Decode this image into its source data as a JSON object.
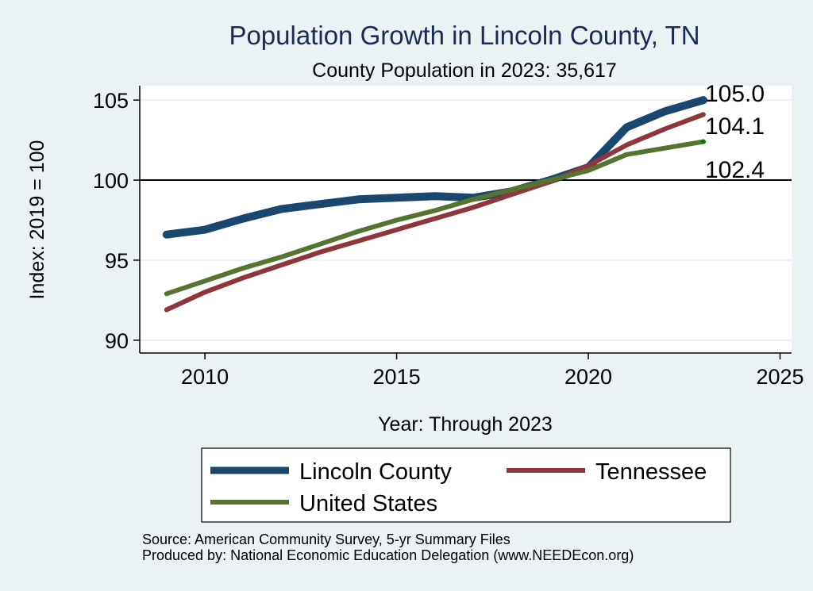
{
  "chart_data": {
    "type": "line",
    "title": "Population Growth in Lincoln County, TN",
    "subtitle": "County Population in 2023: 35,617",
    "xlabel": "Year: Through 2023",
    "ylabel": "Index: 2019 = 100",
    "xlim": [
      2008.3,
      2025.3
    ],
    "ylim": [
      89.2,
      105.9
    ],
    "xticks": [
      2010,
      2015,
      2020,
      2025
    ],
    "yticks": [
      90,
      95,
      100,
      105
    ],
    "reference_line": 100,
    "grid": true,
    "x": [
      2009,
      2010,
      2011,
      2012,
      2013,
      2014,
      2015,
      2016,
      2017,
      2018,
      2019,
      2020,
      2021,
      2022,
      2023
    ],
    "series": [
      {
        "name": "Lincoln  County",
        "color": "#1a476f",
        "values": [
          96.6,
          96.9,
          97.6,
          98.2,
          98.5,
          98.8,
          98.9,
          99.0,
          98.9,
          99.3,
          100.0,
          100.8,
          103.3,
          104.3,
          105.0
        ],
        "end_label": "105.0"
      },
      {
        "name": "Tennessee",
        "color": "#90353b",
        "values": [
          91.9,
          93.0,
          93.9,
          94.7,
          95.5,
          96.2,
          96.9,
          97.6,
          98.3,
          99.1,
          99.9,
          100.9,
          102.2,
          103.2,
          104.1
        ],
        "end_label": "104.1"
      },
      {
        "name": "United States",
        "color": "#55752f",
        "values": [
          92.9,
          93.7,
          94.5,
          95.2,
          96.0,
          96.8,
          97.5,
          98.1,
          98.8,
          99.4,
          100.0,
          100.6,
          101.6,
          102.0,
          102.4
        ],
        "end_label": "102.4"
      }
    ],
    "legend": {
      "position": "bottom",
      "entries": [
        "Lincoln  County",
        "Tennessee",
        "United States"
      ]
    },
    "notes": [
      "Source: American Community Survey, 5-yr Summary Files",
      "Produced by: National Economic Education Delegation (www.NEEDEcon.org)"
    ]
  }
}
